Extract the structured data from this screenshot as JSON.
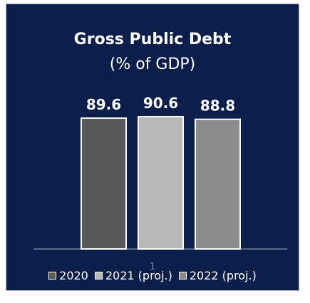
{
  "chart_data": {
    "type": "bar",
    "title": "Gross Public Debt",
    "subtitle": "(% of GDP)",
    "categories": [
      "2020",
      "2021 (proj.)",
      "2022 (proj.)"
    ],
    "values": [
      89.6,
      90.6,
      88.8
    ],
    "data_labels": [
      "89.6",
      "90.6",
      "88.8"
    ],
    "colors": [
      "#595959",
      "#b8b8b8",
      "#8c8c8c"
    ],
    "ylim": [
      0,
      95
    ],
    "legend_position": "bottom",
    "grid": false
  },
  "colors": {
    "background": "#0c1e4a",
    "text": "#ffffff",
    "baseline": "#a8b2c8"
  },
  "page_number": "1"
}
